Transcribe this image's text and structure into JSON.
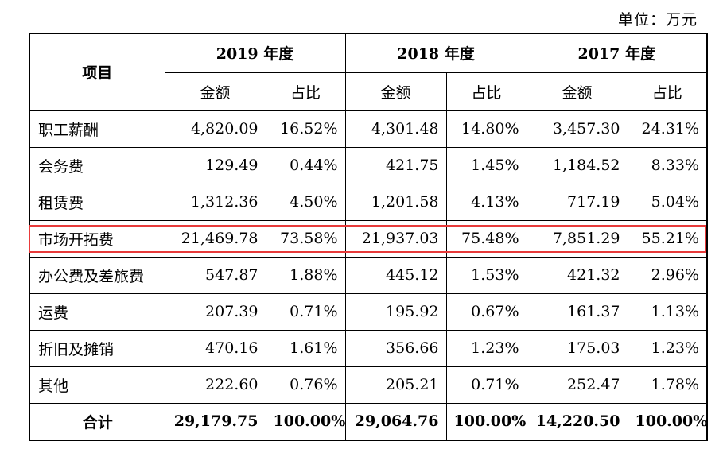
{
  "unit_label": "单位：万元",
  "header": {
    "item_label": "项目",
    "years": [
      "2019 年度",
      "2018 年度",
      "2017 年度"
    ],
    "amount_label": "金额",
    "ratio_label": "占比"
  },
  "rows": [
    {
      "label": "职工薪酬",
      "values": [
        "4,820.09",
        "16.52%",
        "4,301.48",
        "14.80%",
        "3,457.30",
        "24.31%"
      ]
    },
    {
      "label": "会务费",
      "values": [
        "129.49",
        "0.44%",
        "421.75",
        "1.45%",
        "1,184.52",
        "8.33%"
      ]
    },
    {
      "label": "租赁费",
      "values": [
        "1,312.36",
        "4.50%",
        "1,201.58",
        "4.13%",
        "717.19",
        "5.04%"
      ]
    },
    {
      "label": "市场开拓费",
      "values": [
        "21,469.78",
        "73.58%",
        "21,937.03",
        "75.48%",
        "7,851.29",
        "55.21%"
      ]
    },
    {
      "label": "办公费及差旅费",
      "values": [
        "547.87",
        "1.88%",
        "445.12",
        "1.53%",
        "421.32",
        "2.96%"
      ]
    },
    {
      "label": "运费",
      "values": [
        "207.39",
        "0.71%",
        "195.92",
        "0.67%",
        "161.37",
        "1.13%"
      ]
    },
    {
      "label": "折旧及摊销",
      "values": [
        "470.16",
        "1.61%",
        "356.66",
        "1.23%",
        "175.03",
        "1.23%"
      ]
    },
    {
      "label": "其他",
      "values": [
        "222.60",
        "0.76%",
        "205.21",
        "0.71%",
        "252.47",
        "1.78%"
      ]
    }
  ],
  "total": {
    "label": "合计",
    "values": [
      "29,179.75",
      "100.00%",
      "29,064.76",
      "100.00%",
      "14,220.50",
      "100.00%"
    ]
  },
  "highlight_color": "#e83b3b"
}
